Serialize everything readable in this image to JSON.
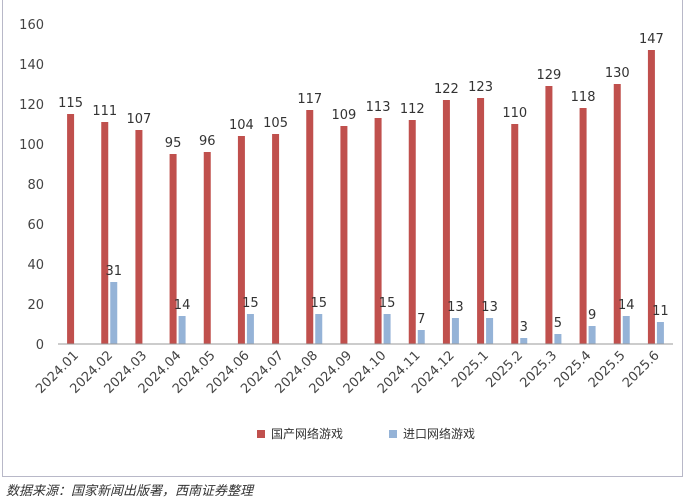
{
  "chart_data": {
    "type": "bar",
    "title": "",
    "xlabel": "",
    "ylabel": "",
    "ylim": [
      0,
      160
    ],
    "yticks": [
      0,
      20,
      40,
      60,
      80,
      100,
      120,
      140,
      160
    ],
    "grid": false,
    "legend_position": "bottom",
    "categories": [
      "2024.01",
      "2024.02",
      "2024.03",
      "2024.04",
      "2024.05",
      "2024.06",
      "2024.07",
      "2024.08",
      "2024.09",
      "2024.10",
      "2024.11",
      "2024.12",
      "2025.1",
      "2025.2",
      "2025.3",
      "2025.4",
      "2025.5",
      "2025.6"
    ],
    "series": [
      {
        "name": "国产网络游戏",
        "color": "#c0504d",
        "values": [
          115,
          111,
          107,
          95,
          96,
          104,
          105,
          117,
          109,
          113,
          112,
          122,
          123,
          110,
          129,
          118,
          130,
          147
        ]
      },
      {
        "name": "进口网络游戏",
        "color": "#95b3d7",
        "values": [
          null,
          31,
          null,
          14,
          null,
          15,
          null,
          15,
          null,
          15,
          7,
          13,
          13,
          3,
          5,
          9,
          14,
          11
        ]
      }
    ]
  },
  "footer": {
    "source": "数据来源：国家新闻出版署，西南证券整理"
  }
}
